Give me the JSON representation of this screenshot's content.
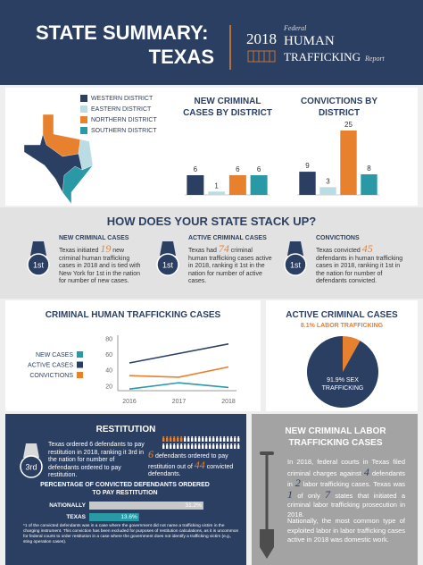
{
  "header": {
    "title": "STATE SUMMARY:",
    "state": "TEXAS",
    "report": {
      "year": "2018",
      "federal": "Federal",
      "human": "HUMAN",
      "trafficking": "TRAFFICKING",
      "report": "Report"
    }
  },
  "map_legend": [
    {
      "name": "WESTERN DISTRICT",
      "color": "#2b3f63"
    },
    {
      "name": "EASTERN DISTRICT",
      "color": "#b9dde3"
    },
    {
      "name": "NORTHERN DISTRICT",
      "color": "#e8812e"
    },
    {
      "name": "SOUTHERN DISTRICT",
      "color": "#2a99a6"
    }
  ],
  "stack_up": {
    "title": "HOW DOES YOUR STATE STACK UP?",
    "items": [
      {
        "rank": "1st",
        "heading": "NEW CRIMINAL CASES",
        "text": [
          "Texas initiated ",
          19,
          " new criminal human trafficking cases in 2018 and is tied with New York for 1st in the nation for number of new cases."
        ]
      },
      {
        "rank": "1st",
        "heading": "ACTIVE CRIMINAL CASES",
        "text": [
          "Texas had ",
          74,
          " criminal human trafficking cases active in 2018, ranking it 1st in the nation for number of active cases."
        ]
      },
      {
        "rank": "1st",
        "heading": "CONVICTIONS",
        "text": [
          "Texas convicted ",
          45,
          " defendants in human trafficking cases in 2018, ranking it 1st in the nation for number of defendants convicted."
        ]
      }
    ]
  },
  "restitution": {
    "title": "RESTITUTION",
    "rank": "3rd",
    "text": "Texas ordered 6 defendants to pay restitution in 2018, ranking it 3rd in the nation for number of defendants ordered to pay restitution.",
    "icon_text": [
      6,
      " defendants ordered to pay restitution out of ",
      44,
      " convicted defendants."
    ],
    "footnote": "*1 of the convicted defendants was in a case where the government did not name a trafficking victim in the charging instrument. This conviction has been excluded for purposes of restitution calculations, as it is uncommon for federal courts to order restitution in a case where the government does not identify a trafficking victim (e.g., sting operation cases)."
  },
  "labor": {
    "title": "NEW CRIMINAL LABOR TRAFFICKING CASES",
    "text": [
      "In 2018, federal courts in Texas filed criminal charges against ",
      4,
      " defendants in ",
      2,
      " labor trafficking cases. Texas was ",
      1,
      " of only ",
      7,
      " states that initiated a criminal labor trafficking prosecution in 2018."
    ],
    "text2": "Nationally, the most common type of exploited labor in labor trafficking cases active in 2018 was domestic work."
  },
  "chart_data": [
    {
      "type": "bar",
      "title": "NEW CRIMINAL CASES BY DISTRICT",
      "categories": [
        null,
        null,
        null,
        null
      ],
      "values": [
        6,
        1,
        6,
        6
      ],
      "colors": [
        "#2b3f63",
        "#b9dde3",
        "#e8812e",
        "#2a99a6"
      ]
    },
    {
      "type": "bar",
      "title": "CONVICTIONS BY DISTRICT",
      "categories": [
        null,
        null,
        null,
        null
      ],
      "values": [
        9,
        3,
        25,
        8
      ],
      "colors": [
        "#2b3f63",
        "#b9dde3",
        "#e8812e",
        "#2a99a6"
      ]
    },
    {
      "type": "line",
      "title": "CRIMINAL HUMAN TRAFFICKING CASES",
      "categories": [
        "2016",
        "2017",
        "2018"
      ],
      "ylim": [
        15,
        85
      ],
      "yticks": [
        20,
        40,
        60,
        80
      ],
      "series": [
        {
          "name": "NEW CASES",
          "color": "#2a99a6",
          "values": [
            17,
            25,
            19
          ]
        },
        {
          "name": "ACTIVE CASES",
          "color": "#2b3f63",
          "values": [
            50,
            62,
            74
          ]
        },
        {
          "name": "CONVICTIONS",
          "color": "#e8812e",
          "values": [
            34,
            32,
            45
          ]
        }
      ]
    },
    {
      "type": "pie",
      "title": "ACTIVE CRIMINAL CASES",
      "categories": [
        "LABOR TRAFFICKING",
        "SEX TRAFFICKING"
      ],
      "values": [
        8.1,
        91.9
      ],
      "value_labels": [
        "8.1%",
        "91.9%"
      ],
      "colors": [
        "#e8812e",
        "#2b3f63"
      ]
    },
    {
      "type": "bar",
      "horizontal": true,
      "title": "PERCENTAGE OF CONVICTED DEFENDANTS ORDERED TO PAY RESTITUTION",
      "categories": [
        "NATIONALLY",
        "TEXAS"
      ],
      "values": [
        31.2,
        13.6
      ],
      "value_labels": [
        "31.2%",
        "13.6%"
      ],
      "colors": [
        "#c8c8c8",
        "#2a99a6"
      ]
    }
  ]
}
